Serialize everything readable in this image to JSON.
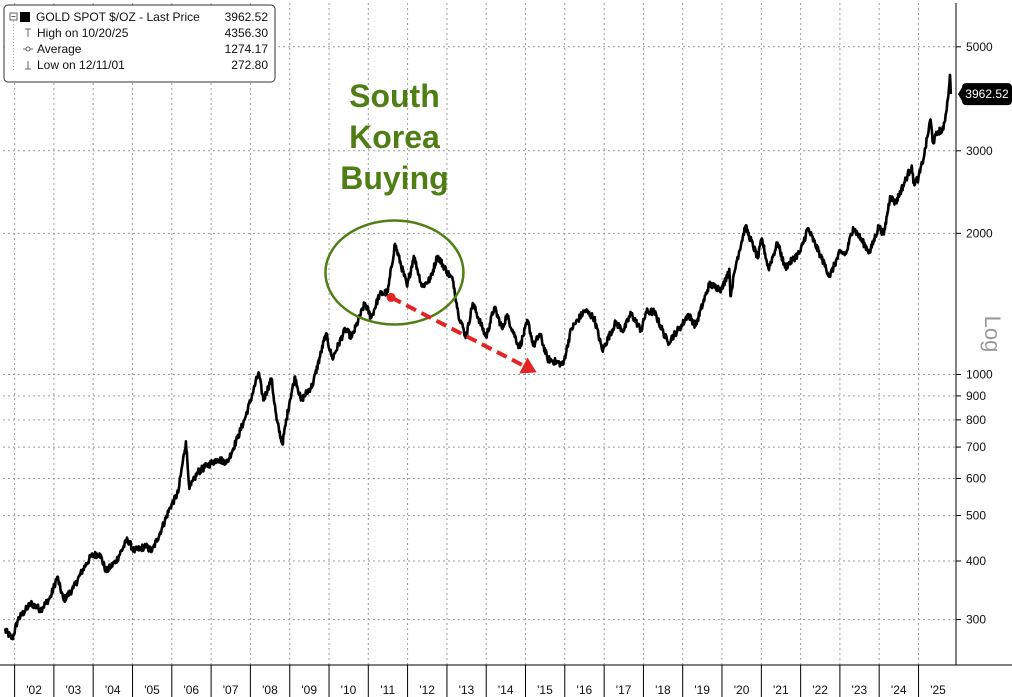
{
  "chart_data": {
    "type": "line",
    "yscale": "log",
    "scale_label": "Log",
    "ylim": [
      240,
      6200
    ],
    "xlim": [
      "2001-09-15",
      "2025-12-15"
    ],
    "y_ticks": [
      "5000",
      "3000",
      "2000",
      "1000",
      "900",
      "800",
      "700",
      "600",
      "500",
      "400",
      "300"
    ],
    "x_ticks": [
      "'02",
      "'03",
      "'04",
      "'05",
      "'06",
      "'07",
      "'08",
      "'09",
      "'10",
      "'11",
      "'12",
      "'13",
      "'14",
      "'15",
      "'16",
      "'17",
      "'18",
      "'19",
      "'20",
      "'21",
      "'22",
      "'23",
      "'24",
      "'25"
    ],
    "grid": true,
    "legend": {
      "placement": "top-left",
      "title": "GOLD SPOT $/OZ - Last Price",
      "title_value": "3962.52",
      "rows": [
        {
          "label": "High on 10/20/25",
          "value": "4356.30"
        },
        {
          "label": "Average",
          "value": "1274.17"
        },
        {
          "label": "Low on 12/11/01",
          "value": "272.80"
        }
      ]
    },
    "last_value_label": "3962.52",
    "series": [
      {
        "color": "#000000",
        "points": [
          [
            "2001-10-01",
            285
          ],
          [
            "2001-12-11",
            273
          ],
          [
            "2002-02-01",
            300
          ],
          [
            "2002-06-01",
            325
          ],
          [
            "2002-09-01",
            315
          ],
          [
            "2002-12-01",
            335
          ],
          [
            "2003-02-01",
            370
          ],
          [
            "2003-04-01",
            330
          ],
          [
            "2003-07-01",
            350
          ],
          [
            "2003-10-01",
            385
          ],
          [
            "2003-12-15",
            410
          ],
          [
            "2004-03-01",
            415
          ],
          [
            "2004-05-01",
            380
          ],
          [
            "2004-08-01",
            400
          ],
          [
            "2004-11-15",
            445
          ],
          [
            "2005-01-15",
            420
          ],
          [
            "2005-05-01",
            430
          ],
          [
            "2005-07-01",
            420
          ],
          [
            "2005-10-01",
            470
          ],
          [
            "2005-12-15",
            520
          ],
          [
            "2006-03-01",
            560
          ],
          [
            "2006-05-12",
            720
          ],
          [
            "2006-06-14",
            570
          ],
          [
            "2006-09-01",
            620
          ],
          [
            "2006-12-01",
            640
          ],
          [
            "2007-03-01",
            660
          ],
          [
            "2007-06-01",
            650
          ],
          [
            "2007-09-01",
            730
          ],
          [
            "2007-11-15",
            810
          ],
          [
            "2008-01-15",
            900
          ],
          [
            "2008-03-17",
            1010
          ],
          [
            "2008-05-01",
            880
          ],
          [
            "2008-07-15",
            980
          ],
          [
            "2008-09-01",
            800
          ],
          [
            "2008-10-24",
            710
          ],
          [
            "2009-01-01",
            880
          ],
          [
            "2009-02-20",
            990
          ],
          [
            "2009-04-15",
            880
          ],
          [
            "2009-08-01",
            950
          ],
          [
            "2009-12-03",
            1220
          ],
          [
            "2010-02-01",
            1080
          ],
          [
            "2010-06-01",
            1250
          ],
          [
            "2010-08-01",
            1200
          ],
          [
            "2010-12-01",
            1420
          ],
          [
            "2011-01-28",
            1320
          ],
          [
            "2011-04-15",
            1480
          ],
          [
            "2011-07-01",
            1500
          ],
          [
            "2011-09-06",
            1900
          ],
          [
            "2011-12-29",
            1540
          ],
          [
            "2012-02-28",
            1790
          ],
          [
            "2012-05-15",
            1540
          ],
          [
            "2012-08-01",
            1600
          ],
          [
            "2012-10-04",
            1790
          ],
          [
            "2012-12-31",
            1660
          ],
          [
            "2013-03-01",
            1580
          ],
          [
            "2013-04-16",
            1350
          ],
          [
            "2013-06-28",
            1200
          ],
          [
            "2013-08-28",
            1420
          ],
          [
            "2013-12-31",
            1200
          ],
          [
            "2014-03-17",
            1390
          ],
          [
            "2014-06-01",
            1250
          ],
          [
            "2014-07-10",
            1340
          ],
          [
            "2014-11-06",
            1140
          ],
          [
            "2015-01-22",
            1300
          ],
          [
            "2015-03-17",
            1150
          ],
          [
            "2015-05-15",
            1220
          ],
          [
            "2015-07-24",
            1080
          ],
          [
            "2015-12-17",
            1050
          ],
          [
            "2016-03-01",
            1250
          ],
          [
            "2016-07-06",
            1370
          ],
          [
            "2016-09-30",
            1320
          ],
          [
            "2016-12-15",
            1125
          ],
          [
            "2017-04-17",
            1290
          ],
          [
            "2017-06-30",
            1240
          ],
          [
            "2017-09-08",
            1350
          ],
          [
            "2017-12-12",
            1240
          ],
          [
            "2018-01-25",
            1360
          ],
          [
            "2018-04-11",
            1360
          ],
          [
            "2018-08-16",
            1170
          ],
          [
            "2018-12-31",
            1280
          ],
          [
            "2019-02-20",
            1345
          ],
          [
            "2019-05-01",
            1270
          ],
          [
            "2019-09-04",
            1555
          ],
          [
            "2019-12-31",
            1520
          ],
          [
            "2020-03-09",
            1680
          ],
          [
            "2020-03-19",
            1470
          ],
          [
            "2020-05-15",
            1740
          ],
          [
            "2020-08-06",
            2070
          ],
          [
            "2020-11-30",
            1770
          ],
          [
            "2021-01-05",
            1950
          ],
          [
            "2021-03-08",
            1680
          ],
          [
            "2021-06-01",
            1910
          ],
          [
            "2021-08-09",
            1690
          ],
          [
            "2021-12-31",
            1830
          ],
          [
            "2022-03-08",
            2050
          ],
          [
            "2022-07-01",
            1800
          ],
          [
            "2022-09-28",
            1620
          ],
          [
            "2022-12-31",
            1820
          ],
          [
            "2023-02-28",
            1810
          ],
          [
            "2023-05-04",
            2060
          ],
          [
            "2023-10-05",
            1820
          ],
          [
            "2023-12-28",
            2070
          ],
          [
            "2024-02-14",
            1990
          ],
          [
            "2024-04-12",
            2400
          ],
          [
            "2024-06-01",
            2320
          ],
          [
            "2024-10-30",
            2790
          ],
          [
            "2024-11-14",
            2560
          ],
          [
            "2024-12-31",
            2620
          ],
          [
            "2025-02-24",
            2950
          ],
          [
            "2025-04-22",
            3500
          ],
          [
            "2025-05-15",
            3120
          ],
          [
            "2025-07-01",
            3300
          ],
          [
            "2025-08-20",
            3330
          ],
          [
            "2025-09-30",
            3860
          ],
          [
            "2025-10-20",
            4356.3
          ],
          [
            "2025-10-28",
            3962.52
          ]
        ]
      }
    ],
    "annotations": [
      {
        "text_lines": [
          "South",
          "Korea",
          "Buying"
        ],
        "color": "#4f7f14",
        "ellipse_center": [
          "2011-09-01",
          1650
        ],
        "arrow_from": [
          "2011-08-01",
          1460
        ],
        "arrow_to": [
          "2015-04-15",
          1010
        ],
        "arrow_color": "#e32424"
      }
    ]
  }
}
